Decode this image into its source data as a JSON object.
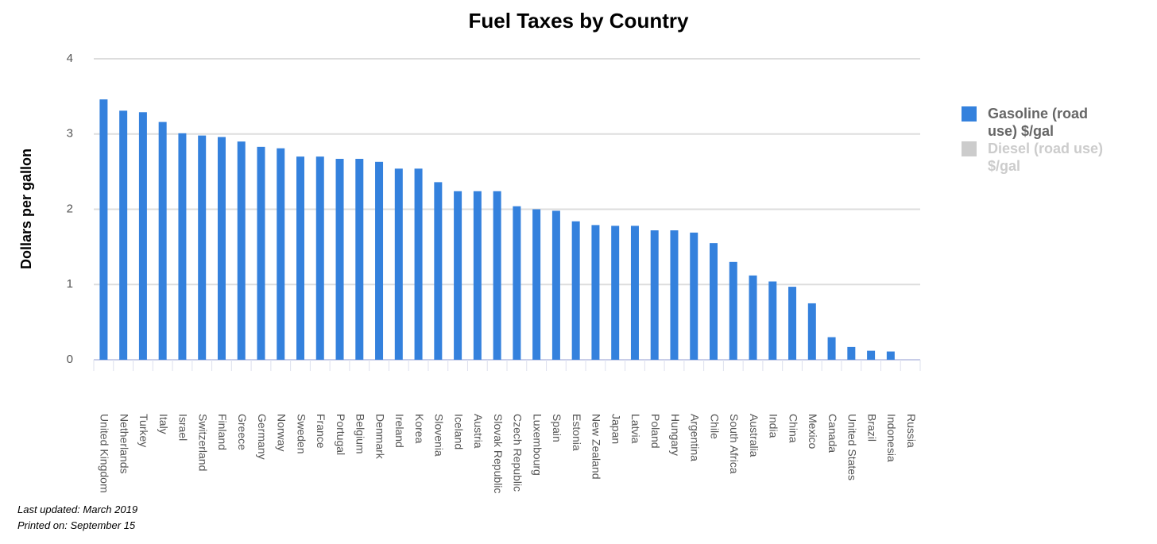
{
  "chart_data": {
    "type": "bar",
    "title": "Fuel Taxes by Country",
    "y_label": "Dollars per gallon",
    "categories": [
      "United Kingdom",
      "Netherlands",
      "Turkey",
      "Italy",
      "Israel",
      "Switzerland",
      "Finland",
      "Greece",
      "Germany",
      "Norway",
      "Sweden",
      "France",
      "Portugal",
      "Belgium",
      "Denmark",
      "Ireland",
      "Korea",
      "Slovenia",
      "Iceland",
      "Austria",
      "Slovak Republic",
      "Czech Republic",
      "Luxembourg",
      "Spain",
      "Estonia",
      "New Zealand",
      "Japan",
      "Latvia",
      "Poland",
      "Hungary",
      "Argentina",
      "Chile",
      "South Africa",
      "Australia",
      "India",
      "China",
      "Mexico",
      "Canada",
      "United States",
      "Brazil",
      "Indonesia",
      "Russia"
    ],
    "series": [
      {
        "name": "Gasoline (road use) $/gal",
        "color": "#3481dd",
        "visible": true,
        "values": [
          3.46,
          3.31,
          3.29,
          3.16,
          3.01,
          2.98,
          2.96,
          2.9,
          2.83,
          2.81,
          2.7,
          2.7,
          2.67,
          2.67,
          2.63,
          2.54,
          2.54,
          2.36,
          2.24,
          2.24,
          2.24,
          2.04,
          2.0,
          1.98,
          1.84,
          1.79,
          1.78,
          1.78,
          1.72,
          1.72,
          1.69,
          1.55,
          1.3,
          1.12,
          1.04,
          0.97,
          0.75,
          0.3,
          0.17,
          0.12,
          0.11,
          0
        ]
      },
      {
        "name": "Diesel (road use) $/gal",
        "color": "#cccccc",
        "visible": false,
        "values": [
          null,
          null,
          null,
          null,
          null,
          null,
          null,
          null,
          null,
          null,
          null,
          null,
          null,
          null,
          null,
          null,
          null,
          null,
          null,
          null,
          null,
          null,
          null,
          null,
          null,
          null,
          null,
          null,
          null,
          null,
          null,
          null,
          null,
          null,
          null,
          null,
          null,
          null,
          null,
          null,
          null,
          null
        ]
      }
    ],
    "ylim": [
      0,
      4
    ],
    "yticks": [
      0,
      1,
      2,
      3,
      4
    ],
    "grid": true,
    "legend": "right",
    "footnotes": [
      "Last updated: March 2019",
      "Printed on: September 15"
    ]
  }
}
